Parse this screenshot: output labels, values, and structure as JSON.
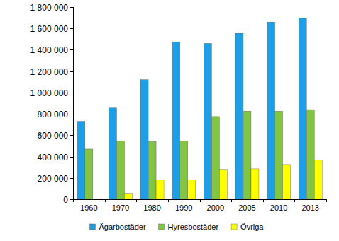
{
  "chart_data": {
    "type": "bar",
    "categories": [
      "1960",
      "1970",
      "1980",
      "1990",
      "2000",
      "2005",
      "2010",
      "2013"
    ],
    "series": [
      {
        "name": "Ägarbostäder",
        "color": "#1e9ee6",
        "values": [
          730000,
          855000,
          1120000,
          1475000,
          1460000,
          1555000,
          1660000,
          1695000
        ]
      },
      {
        "name": "Hyresbostäder",
        "color": "#84c444",
        "values": [
          470000,
          545000,
          540000,
          545000,
          775000,
          825000,
          825000,
          840000
        ]
      },
      {
        "name": "Övriga",
        "color": "#ffff00",
        "values": [
          5000,
          55000,
          180000,
          180000,
          280000,
          285000,
          325000,
          365000
        ]
      }
    ],
    "ylim": [
      0,
      1800000
    ],
    "yticks": [
      0,
      {
        "value": 200000,
        "label": "200 000"
      },
      {
        "value": 400000,
        "label": "400 000"
      },
      {
        "value": 600000,
        "label": "600 000"
      },
      {
        "value": 800000,
        "label": "800 000"
      },
      {
        "value": 1000000,
        "label": "1 000 000"
      },
      {
        "value": 1200000,
        "label": "1 200 000"
      },
      {
        "value": 1400000,
        "label": "1 400 000"
      },
      {
        "value": 1600000,
        "label": "1 600 000"
      },
      {
        "value": 1800000,
        "label": "1 800 000"
      }
    ],
    "grid": false,
    "legend": "bottom"
  }
}
